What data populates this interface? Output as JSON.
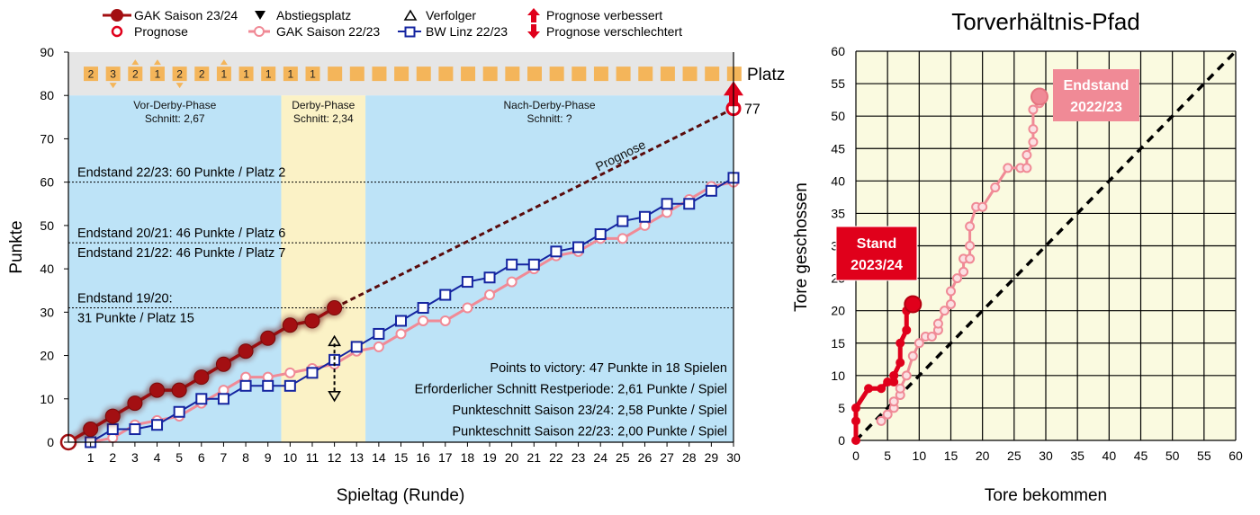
{
  "chart_data": [
    {
      "type": "line",
      "xlabel": "Spieltag (Runde)",
      "ylabel": "Punkte",
      "xlim": [
        0,
        30
      ],
      "ylim": [
        0,
        90
      ],
      "xticks": [
        1,
        2,
        3,
        4,
        5,
        6,
        7,
        8,
        9,
        10,
        11,
        12,
        13,
        14,
        15,
        16,
        17,
        18,
        19,
        20,
        21,
        22,
        23,
        24,
        25,
        26,
        27,
        28,
        29,
        30
      ],
      "yticks": [
        0,
        10,
        20,
        30,
        40,
        50,
        60,
        70,
        80,
        90
      ],
      "legend": {
        "placement": "top",
        "entries": [
          {
            "key": "gak2324",
            "label": "GAK Saison 23/24",
            "color": "#a30f12"
          },
          {
            "key": "prognose",
            "label": "Prognose",
            "color": "#e0001b"
          },
          {
            "key": "abstieg",
            "label": "Abstiegsplatz",
            "color": "#000000"
          },
          {
            "key": "gak2223",
            "label": "GAK Saison 22/23",
            "color": "#f08a96"
          },
          {
            "key": "verfolger",
            "label": "Verfolger",
            "color": "#000000"
          },
          {
            "key": "bwlinz",
            "label": "BW Linz 22/23",
            "color": "#1424a0"
          },
          {
            "key": "up",
            "label": "Prognose verbessert",
            "color": "#e0001b"
          },
          {
            "key": "down",
            "label": "Prognose verschlechtert",
            "color": "#e0001b"
          }
        ]
      },
      "colors": {
        "blue_zone": "#bde3f7",
        "derby_zone": "#fbf2c6",
        "rank_strip": "#e6e6e6",
        "rank_box": "#f4b55a",
        "rank_up": "#f4b55a",
        "rank_down": "#f4b55a",
        "gak2324": "#a30f12",
        "gak2223": "#f08a96",
        "bwlinz": "#1424a0",
        "prognose_line": "#5a0b0b",
        "red": "#e0001b"
      },
      "phases": [
        {
          "name": "Vor-Derby-Phase",
          "avg": "Schnitt: 2,67",
          "x0": 0,
          "x1": 9.6
        },
        {
          "name": "Derby-Phase",
          "avg": "Schnitt: 2,34",
          "x0": 9.6,
          "x1": 13.4
        },
        {
          "name": "Nach-Derby-Phase",
          "avg": "Schnitt: ?",
          "x0": 13.4,
          "x1": 30
        }
      ],
      "rank_strip": {
        "label": "Platz",
        "ranks": [
          "2",
          "3",
          "2",
          "1",
          "2",
          "2",
          "1",
          "1",
          "1",
          "1",
          "1",
          "",
          "",
          "",
          "",
          "",
          "",
          "",
          "",
          "",
          "",
          "",
          "",
          "",
          "",
          "",
          "",
          "",
          "",
          ""
        ],
        "arrows": [
          {
            "round": 2,
            "dir": "down"
          },
          {
            "round": 3,
            "dir": "up"
          },
          {
            "round": 4,
            "dir": "up"
          },
          {
            "round": 5,
            "dir": "down"
          },
          {
            "round": 7,
            "dir": "up"
          }
        ]
      },
      "reference_lines": [
        {
          "y": 60,
          "text1": "Endstand 22/23: 60 Punkte / Platz 2",
          "text2": ""
        },
        {
          "y": 46,
          "text1": "Endstand 20/21: 46 Punkte / Platz 6",
          "text2": "Endstand 21/22: 46 Punkte / Platz 7"
        },
        {
          "y": 31,
          "text1": "Endstand 19/20:",
          "text2": "31 Punkte / Platz 15"
        }
      ],
      "series": [
        {
          "key": "gak2223",
          "name": "GAK Saison 22/23",
          "x": [
            1,
            2,
            3,
            4,
            5,
            6,
            7,
            8,
            9,
            10,
            11,
            12,
            13,
            14,
            15,
            16,
            17,
            18,
            19,
            20,
            21,
            22,
            23,
            24,
            25,
            26,
            27,
            28,
            29,
            30
          ],
          "values": [
            0,
            1,
            4,
            5,
            6,
            9,
            12,
            15,
            15,
            16,
            17,
            18,
            21,
            22,
            25,
            28,
            28,
            31,
            34,
            37,
            40,
            43,
            44,
            47,
            47,
            50,
            53,
            56,
            59,
            60
          ]
        },
        {
          "key": "bwlinz",
          "name": "BW Linz 22/23",
          "x": [
            1,
            2,
            3,
            4,
            5,
            6,
            7,
            8,
            9,
            10,
            11,
            12,
            13,
            14,
            15,
            16,
            17,
            18,
            19,
            20,
            21,
            22,
            23,
            24,
            25,
            26,
            27,
            28,
            29,
            30
          ],
          "values": [
            0,
            3,
            3,
            4,
            7,
            10,
            10,
            13,
            13,
            13,
            16,
            19,
            22,
            25,
            28,
            31,
            34,
            37,
            38,
            41,
            41,
            44,
            45,
            48,
            51,
            52,
            55,
            55,
            58,
            61
          ]
        },
        {
          "key": "gak2324",
          "name": "GAK Saison 23/24",
          "x": [
            0,
            1,
            2,
            3,
            4,
            5,
            6,
            7,
            8,
            9,
            10,
            11,
            12
          ],
          "values": [
            0,
            3,
            6,
            9,
            12,
            12,
            15,
            18,
            21,
            24,
            27,
            28,
            31
          ]
        }
      ],
      "prognose": {
        "label": "Prognose",
        "from": [
          12,
          31
        ],
        "to": [
          30,
          77
        ],
        "value_label": "77"
      },
      "verfolger_marker": {
        "x": 12,
        "y_top": 24,
        "y_bottom": 10
      },
      "stats": [
        "Points to victory: 47 Punkte in 18 Spielen",
        "Erforderlicher Schnitt Restperiode: 2,61 Punkte / Spiel",
        "Punkteschnitt Saison 23/24: 2,58 Punkte / Spiel",
        "Punkteschnitt Saison 22/23: 2,00 Punkte / Spiel"
      ]
    },
    {
      "type": "line",
      "title": "Torverhältnis-Pfad",
      "xlabel": "Tore  bekommen",
      "ylabel": "Tore geschossen",
      "xlim": [
        0,
        60
      ],
      "ylim": [
        0,
        60
      ],
      "xticks": [
        0,
        5,
        10,
        15,
        20,
        25,
        30,
        35,
        40,
        45,
        50,
        55,
        60
      ],
      "yticks": [
        0,
        5,
        10,
        15,
        20,
        25,
        30,
        35,
        40,
        45,
        50,
        55,
        60
      ],
      "grid": true,
      "colors": {
        "background": "#fafae0",
        "grid": "#000000",
        "stand": "#e0001b",
        "endstand": "#f08a96"
      },
      "series": [
        {
          "key": "stand",
          "label": [
            "Stand",
            "2023/24"
          ],
          "x": [
            0,
            0,
            0,
            2,
            4,
            5,
            6,
            6,
            7,
            7,
            8,
            8,
            9,
            9
          ],
          "y": [
            0,
            3,
            5,
            8,
            8,
            9,
            9,
            10,
            12,
            15,
            17,
            20,
            21,
            21
          ]
        },
        {
          "key": "endstand",
          "label": [
            "Endstand",
            "2022/23"
          ],
          "x": [
            4,
            5,
            6,
            6,
            7,
            7,
            8,
            9,
            10,
            11,
            12,
            13,
            13,
            14,
            15,
            15,
            16,
            17,
            17,
            18,
            18,
            18,
            19,
            20,
            22,
            24,
            26,
            27,
            27,
            28,
            28,
            28,
            29,
            29
          ],
          "y": [
            3,
            4,
            5,
            6,
            7,
            8,
            10,
            13,
            15,
            16,
            16,
            17,
            18,
            20,
            21,
            23,
            25,
            26,
            28,
            28,
            30,
            33,
            36,
            36,
            39,
            42,
            42,
            42,
            44,
            46,
            48,
            51,
            52,
            53
          ]
        }
      ]
    }
  ]
}
